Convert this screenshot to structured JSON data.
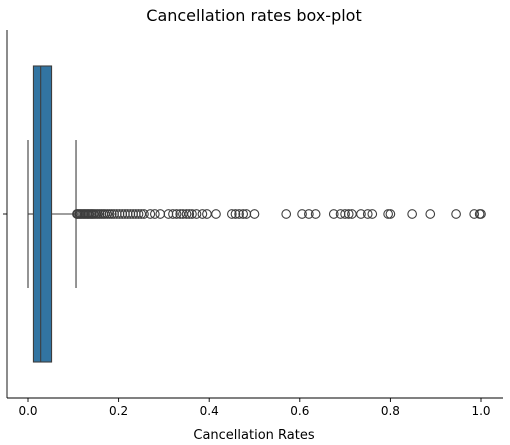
{
  "chart_data": {
    "type": "box",
    "orientation": "horizontal",
    "title": "Cancellation rates box-plot",
    "xlabel": "Cancellation Rates",
    "ylabel": "",
    "xlim": [
      -0.05,
      1.05
    ],
    "xticks": [
      {
        "value": 0.0,
        "label": "0.0"
      },
      {
        "value": 0.2,
        "label": "0.2"
      },
      {
        "value": 0.4,
        "label": "0.4"
      },
      {
        "value": 0.6,
        "label": "0.6"
      },
      {
        "value": 0.8,
        "label": "0.8"
      },
      {
        "value": 1.0,
        "label": "1.0"
      }
    ],
    "grid": false,
    "box": {
      "color": "#3274a1",
      "whisker_low": 0.0,
      "q1": 0.012,
      "median": 0.028,
      "q3": 0.052,
      "whisker_high": 0.106
    },
    "outliers": [
      0.108,
      0.11,
      0.113,
      0.116,
      0.119,
      0.122,
      0.125,
      0.128,
      0.131,
      0.134,
      0.137,
      0.14,
      0.143,
      0.146,
      0.15,
      0.154,
      0.158,
      0.162,
      0.166,
      0.17,
      0.175,
      0.18,
      0.185,
      0.19,
      0.196,
      0.202,
      0.208,
      0.214,
      0.22,
      0.226,
      0.232,
      0.238,
      0.244,
      0.25,
      0.256,
      0.27,
      0.28,
      0.292,
      0.31,
      0.32,
      0.328,
      0.336,
      0.342,
      0.35,
      0.356,
      0.362,
      0.372,
      0.385,
      0.395,
      0.415,
      0.45,
      0.458,
      0.466,
      0.475,
      0.482,
      0.5,
      0.57,
      0.605,
      0.62,
      0.635,
      0.675,
      0.69,
      0.7,
      0.708,
      0.715,
      0.735,
      0.75,
      0.76,
      0.795,
      0.8,
      0.848,
      0.888,
      0.945,
      0.985,
      0.997,
      1.0
    ]
  }
}
